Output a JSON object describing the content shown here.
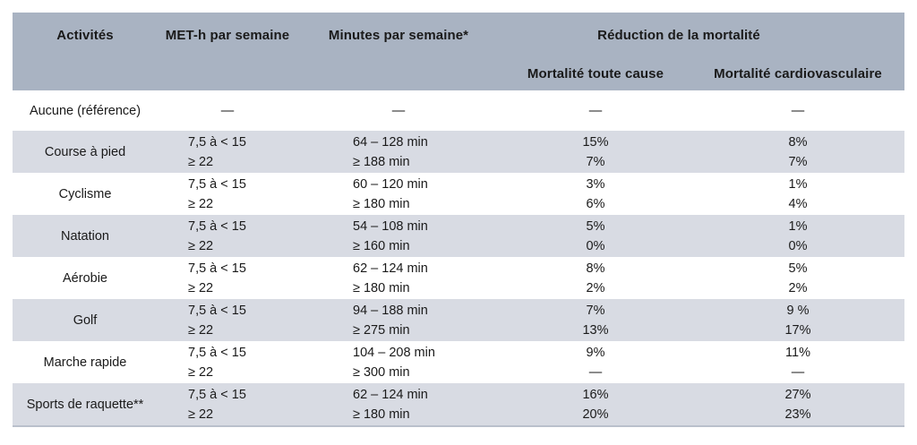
{
  "colors": {
    "background": "#ffffff",
    "header_bg": "#a9b3c2",
    "shaded_row_bg": "#d8dbe3",
    "text": "#1a1a1a",
    "table_bottom_border": "#bac0cc"
  },
  "chart_data": {
    "type": "table",
    "header": {
      "activities": "Activités",
      "met": "MET-h par semaine",
      "minutes": "Minutes par semaine*",
      "group": "Réduction de la mortalité",
      "all_cause": "Mortalité toute cause",
      "cardio": "Mortalité cardiovasculaire"
    },
    "reference_row": {
      "activity": "Aucune (référence)",
      "met": "—",
      "minutes": "—",
      "all_cause": "—",
      "cardio": "—"
    },
    "rows": [
      {
        "activity": "Course à pied",
        "met": [
          "7,5 à < 15",
          "≥ 22"
        ],
        "minutes": [
          "64 – 128 min",
          "≥ 188 min"
        ],
        "all_cause": [
          "15%",
          "7%"
        ],
        "cardio": [
          "8%",
          "7%"
        ],
        "shaded": true
      },
      {
        "activity": "Cyclisme",
        "met": [
          "7,5 à < 15",
          "≥ 22"
        ],
        "minutes": [
          "60 – 120 min",
          "≥ 180 min"
        ],
        "all_cause": [
          "3%",
          "6%"
        ],
        "cardio": [
          "1%",
          "4%"
        ],
        "shaded": false
      },
      {
        "activity": "Natation",
        "met": [
          "7,5 à < 15",
          "≥ 22"
        ],
        "minutes": [
          "54 – 108 min",
          "≥ 160 min"
        ],
        "all_cause": [
          "5%",
          "0%"
        ],
        "cardio": [
          "1%",
          "0%"
        ],
        "shaded": true
      },
      {
        "activity": "Aérobie",
        "met": [
          "7,5 à < 15",
          "≥ 22"
        ],
        "minutes": [
          "62 – 124 min",
          "≥ 180 min"
        ],
        "all_cause": [
          "8%",
          "2%"
        ],
        "cardio": [
          "5%",
          "2%"
        ],
        "shaded": false
      },
      {
        "activity": "Golf",
        "met": [
          "7,5 à < 15",
          "≥ 22"
        ],
        "minutes": [
          "94 – 188 min",
          "≥ 275 min"
        ],
        "all_cause": [
          "7%",
          "13%"
        ],
        "cardio": [
          "9 %",
          "17%"
        ],
        "shaded": true
      },
      {
        "activity": "Marche rapide",
        "met": [
          "7,5 à < 15",
          "≥ 22"
        ],
        "minutes": [
          "104 – 208 min",
          "≥ 300 min"
        ],
        "all_cause": [
          "9%",
          "—"
        ],
        "cardio": [
          "11%",
          "—"
        ],
        "shaded": false
      },
      {
        "activity": "Sports de raquette**",
        "met": [
          "7,5 à < 15",
          "≥ 22"
        ],
        "minutes": [
          "62 – 124 min",
          "≥ 180 min"
        ],
        "all_cause": [
          "16%",
          "20%"
        ],
        "cardio": [
          "27%",
          "23%"
        ],
        "shaded": true
      }
    ]
  }
}
